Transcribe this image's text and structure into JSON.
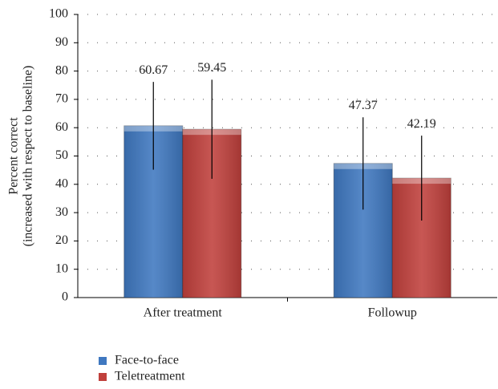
{
  "chart_data": {
    "type": "bar",
    "ylabel": [
      "Percent correct",
      "(increased with respect to baseline)"
    ],
    "categories": [
      "After treatment",
      "Followup"
    ],
    "series": [
      {
        "name": "Face-to-face",
        "color": "#3f78c0",
        "values": [
          60.67,
          47.37
        ],
        "errors": [
          15.5,
          16.3
        ]
      },
      {
        "name": "Teletreatment",
        "color": "#c0403c",
        "values": [
          59.45,
          42.19
        ],
        "errors": [
          17.5,
          15
        ]
      }
    ],
    "ylim": [
      0,
      100
    ],
    "yticks": [
      0,
      10,
      20,
      30,
      40,
      50,
      60,
      70,
      80,
      90,
      100
    ],
    "grid": true
  }
}
